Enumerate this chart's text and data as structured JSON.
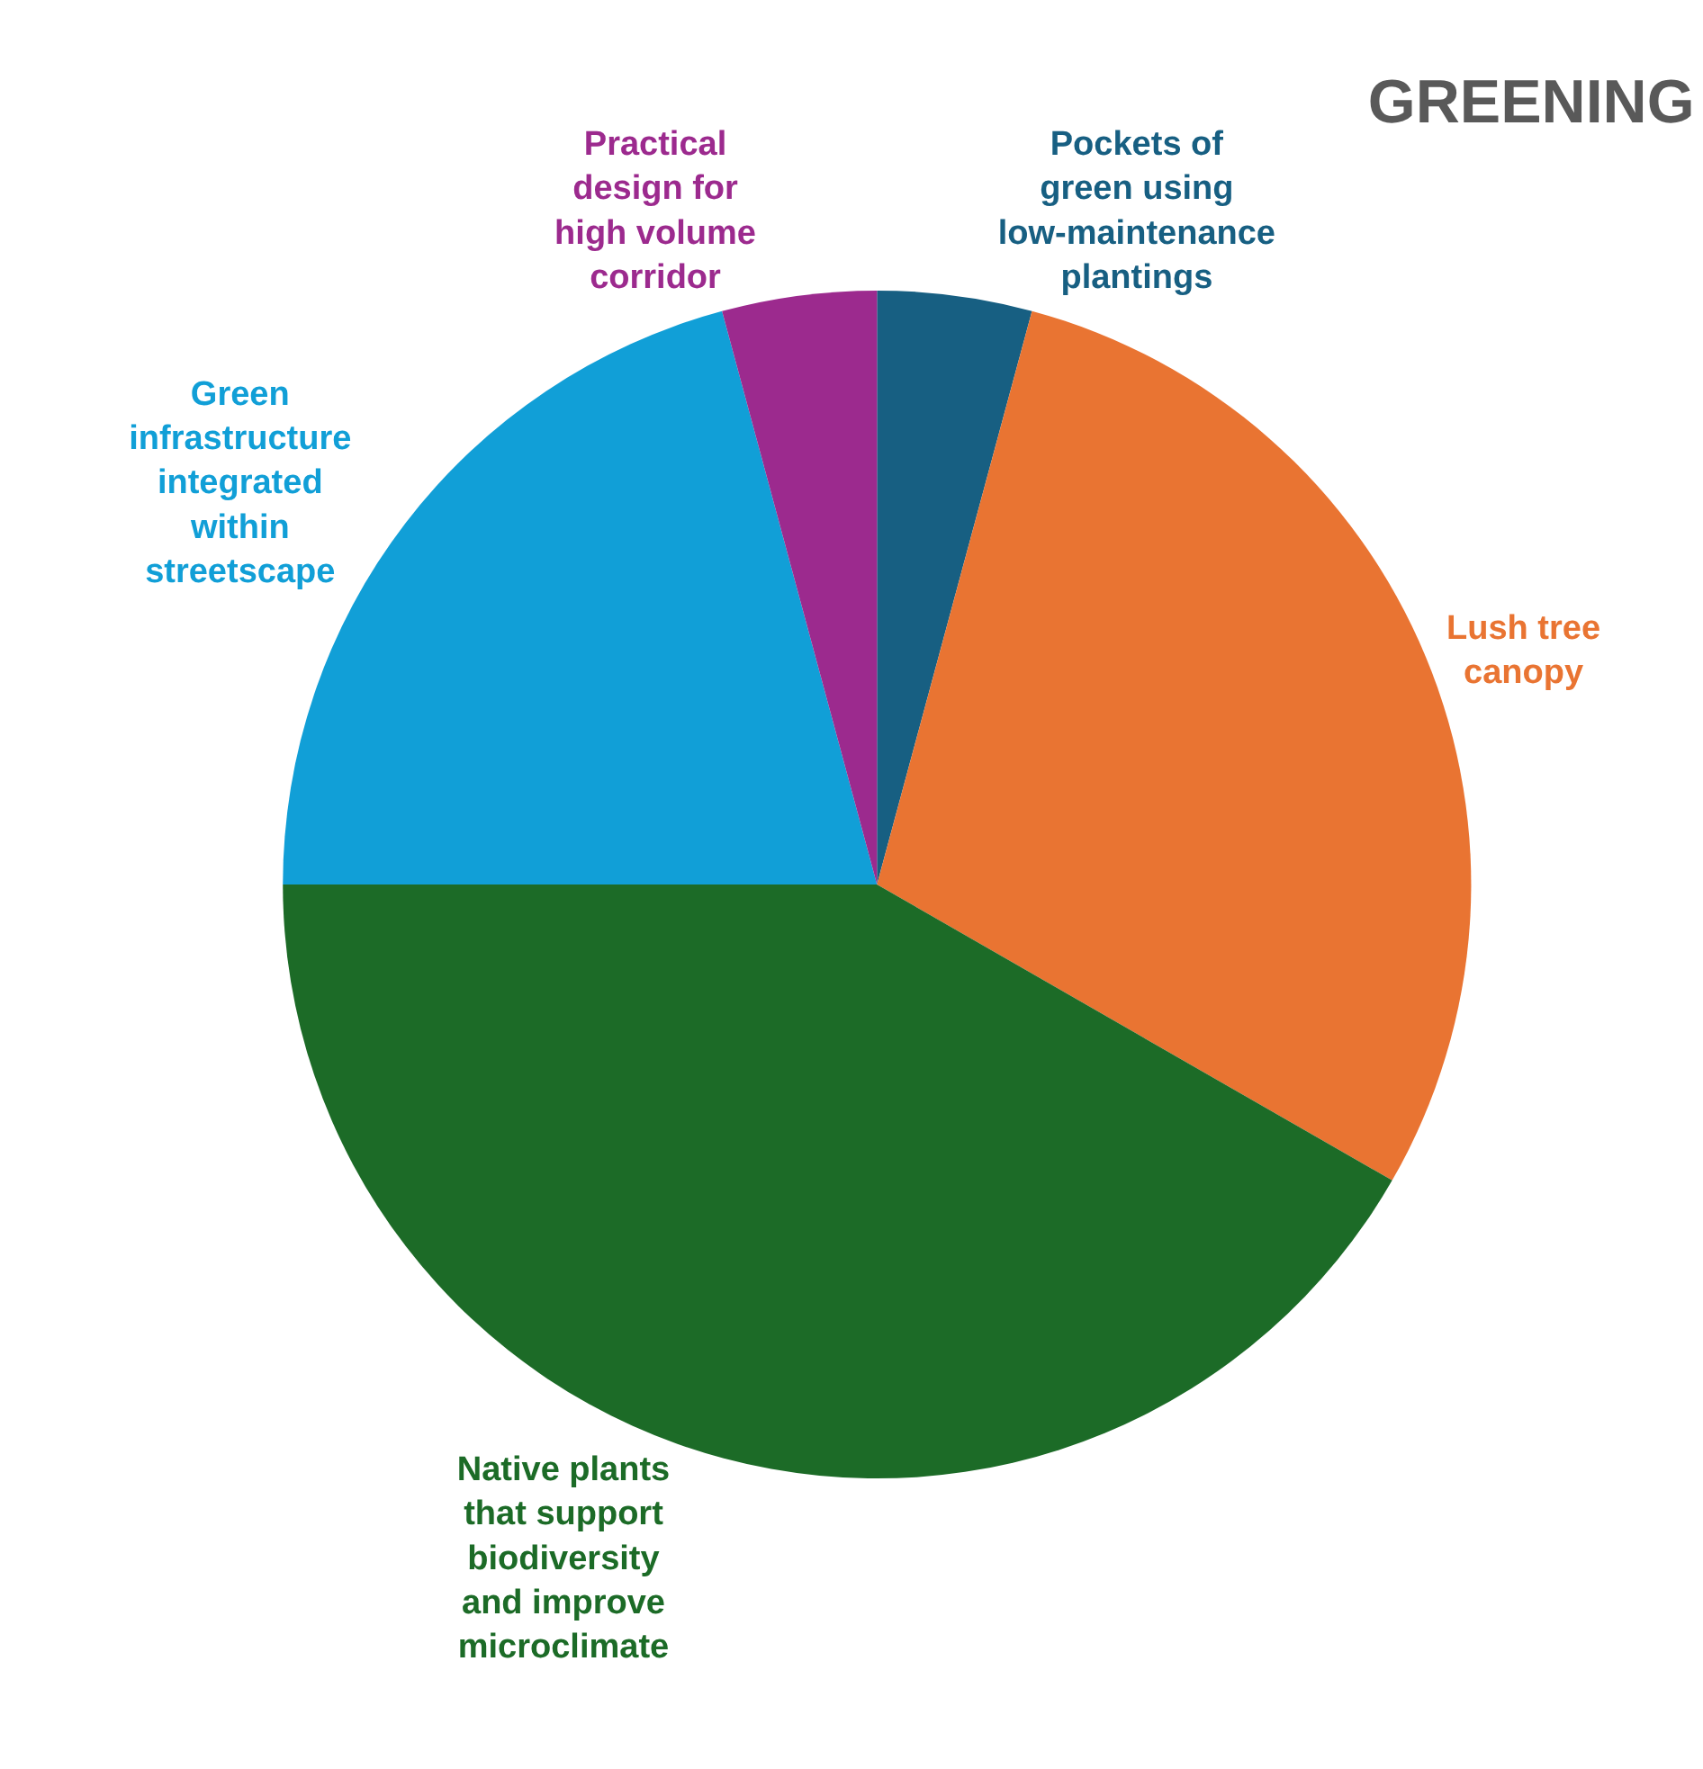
{
  "chart_data": {
    "type": "pie",
    "title": "GREENING",
    "categories": [
      "Pockets of green using low-maintenance plantings",
      "Lush tree canopy",
      "Native plants that support biodiversity and improve microclimate",
      "Green infrastructure integrated within streetscape",
      "Practical design for high volume corridor"
    ],
    "values": [
      4.2,
      29.1,
      41.7,
      20.8,
      4.2
    ],
    "colors": [
      "#175f82",
      "#e97432",
      "#1c6b27",
      "#119fd7",
      "#9c2a8e"
    ],
    "legend": false
  }
}
